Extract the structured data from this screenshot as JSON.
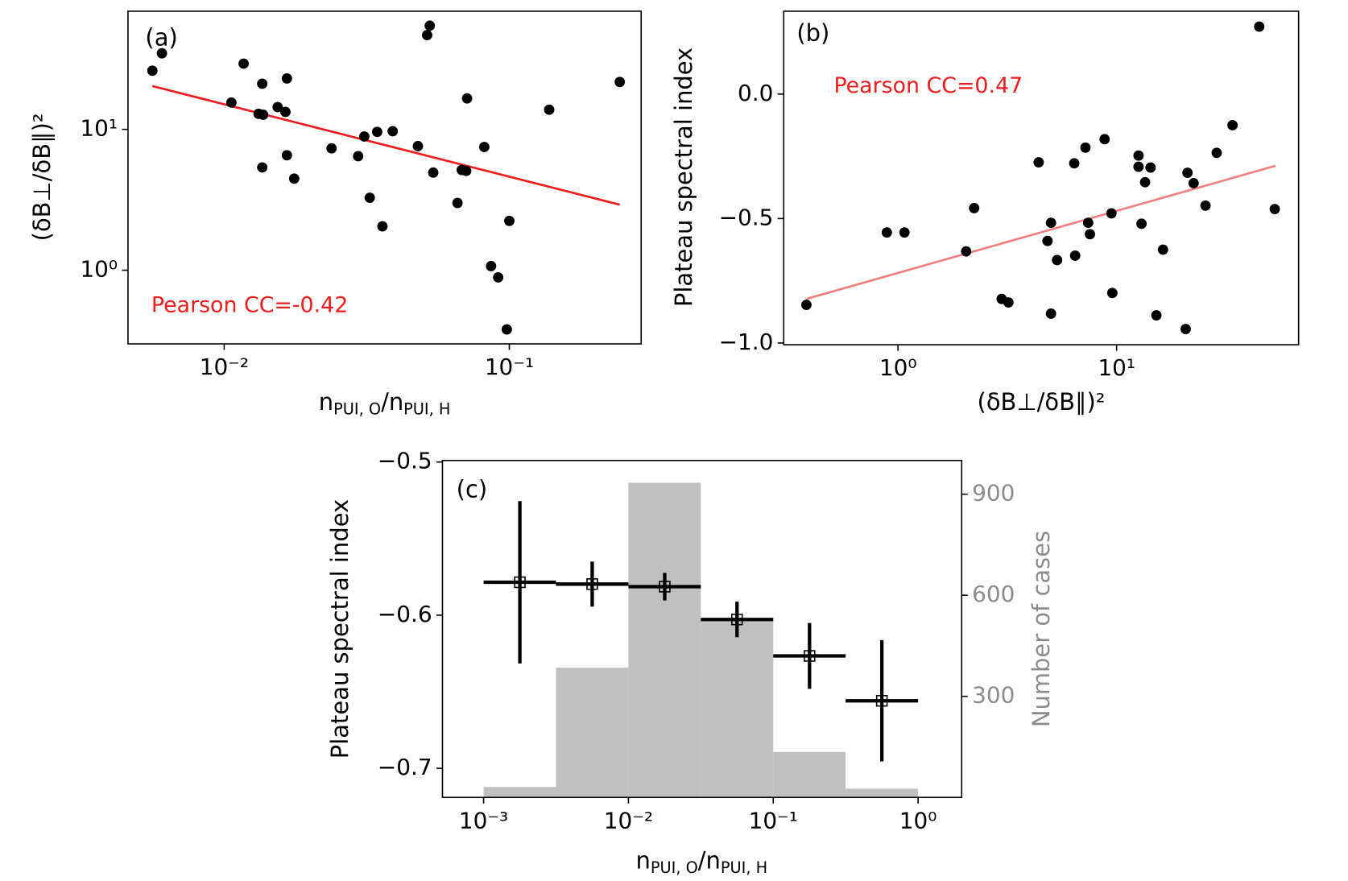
{
  "chart_data": [
    {
      "type": "scatter",
      "panel_label": "(a)",
      "annotation": "Pearson CC=-0.42",
      "annotation_color": "#ee1c1c",
      "xlabel": [
        "n",
        "PUI, O",
        "/n",
        "PUI, H"
      ],
      "ylabel": "(δB⊥/δB∥)²",
      "xscale": "log",
      "yscale": "log",
      "xlim": [
        0.0046,
        0.29
      ],
      "ylim": [
        0.3,
        69
      ],
      "xticks": [
        {
          "value": 0.01,
          "label": "10⁻²"
        },
        {
          "value": 0.1,
          "label": "10⁻¹"
        }
      ],
      "yticks": [
        {
          "value": 1,
          "label": "10⁰"
        },
        {
          "value": 10,
          "label": "10¹"
        }
      ],
      "color": "#000000",
      "x": [
        0.0056,
        0.00605,
        0.0117,
        0.0106,
        0.0136,
        0.0132,
        0.0137,
        0.0154,
        0.0164,
        0.0166,
        0.0136,
        0.0166,
        0.0176,
        0.0238,
        0.0295,
        0.031,
        0.0344,
        0.039,
        0.0324,
        0.0359,
        0.0478,
        0.0515,
        0.0526,
        0.0541,
        0.0711,
        0.0681,
        0.0706,
        0.0658,
        0.0817,
        0.1,
        0.0863,
        0.0914,
        0.098,
        0.138,
        0.244
      ],
      "values": [
        26.1,
        34.7,
        29.3,
        15.5,
        21.1,
        12.9,
        12.7,
        14.4,
        13.3,
        23.0,
        5.37,
        6.55,
        4.47,
        7.33,
        6.45,
        8.9,
        9.6,
        9.7,
        3.27,
        2.05,
        7.6,
        46.7,
        54.5,
        4.93,
        16.6,
        5.15,
        5.07,
        3.0,
        7.5,
        2.24,
        1.07,
        0.89,
        0.38,
        13.8,
        21.7
      ],
      "fit": {
        "x": [
          0.0056,
          0.244
        ],
        "y": [
          20.3,
          2.92
        ],
        "color": "#ee1c1c"
      }
    },
    {
      "type": "scatter",
      "panel_label": "(b)",
      "annotation": "Pearson CC=0.47",
      "annotation_color": "#ee1c1c",
      "xlabel": [
        "(δB⊥/δB∥)²"
      ],
      "ylabel": "Plateau spectral index",
      "xscale": "log",
      "yscale": "linear",
      "xlim": [
        0.3,
        68
      ],
      "ylim": [
        -1.007,
        0.333
      ],
      "xticks": [
        {
          "value": 1,
          "label": "10⁰"
        },
        {
          "value": 10,
          "label": "10¹"
        }
      ],
      "yticks": [
        {
          "value": -1.0,
          "label": "−1.0"
        },
        {
          "value": -0.5,
          "label": "−0.5"
        },
        {
          "value": 0.0,
          "label": "0.0"
        }
      ],
      "color": "#000000",
      "x": [
        0.381,
        0.889,
        1.07,
        2.05,
        2.23,
        2.98,
        3.2,
        4.4,
        4.83,
        5.01,
        5.01,
        5.34,
        6.4,
        6.46,
        7.2,
        7.41,
        7.55,
        8.81,
        9.47,
        9.56,
        12.6,
        12.6,
        13.0,
        13.5,
        14.3,
        15.2,
        16.3,
        20.7,
        21.1,
        22.5,
        25.5,
        28.7,
        33.9,
        44.9,
        52.9
      ],
      "values": [
        -0.847,
        -0.556,
        -0.556,
        -0.632,
        -0.458,
        -0.823,
        -0.837,
        -0.274,
        -0.59,
        -0.517,
        -0.882,
        -0.667,
        -0.278,
        -0.649,
        -0.215,
        -0.517,
        -0.563,
        -0.181,
        -0.479,
        -0.799,
        -0.247,
        -0.292,
        -0.521,
        -0.354,
        -0.295,
        -0.889,
        -0.625,
        -0.944,
        -0.316,
        -0.358,
        -0.448,
        -0.236,
        -0.125,
        0.271,
        -0.462
      ],
      "fit": {
        "x": [
          0.381,
          53.3
        ],
        "y": [
          -0.823,
          -0.288
        ],
        "color": "#f08080"
      }
    },
    {
      "type": "errorbar",
      "panel_label": "(c)",
      "xlabel": [
        "n",
        "PUI, O",
        "/n",
        "PUI, H"
      ],
      "ylabel": "Plateau spectral index",
      "y2label": "Number of cases",
      "y2color": "#8c8c8c",
      "xscale": "log",
      "yscale": "linear",
      "xlim": [
        0.00052,
        2.0
      ],
      "ylim": [
        -0.719,
        -0.499
      ],
      "y2lim": [
        0,
        1000
      ],
      "xticks": [
        {
          "value": 0.001,
          "label": "10⁻³"
        },
        {
          "value": 0.01,
          "label": "10⁻²"
        },
        {
          "value": 0.1,
          "label": "10⁻¹"
        },
        {
          "value": 1,
          "label": "10⁰"
        }
      ],
      "yticks": [
        {
          "value": -0.7,
          "label": "−0.7"
        },
        {
          "value": -0.6,
          "label": "−0.6"
        },
        {
          "value": -0.5,
          "label": "−0.5"
        }
      ],
      "y2ticks": [
        300,
        600,
        900
      ],
      "histogram": {
        "bins": [
          0.001,
          0.00316,
          0.01,
          0.0316,
          0.1,
          0.316,
          1
        ],
        "counts": [
          31,
          385,
          934,
          530,
          135,
          26
        ],
        "color": "#c0c0c0",
        "axis": "y2"
      },
      "series": [
        {
          "color": "#000000",
          "x": [
            0.00178,
            0.00562,
            0.0178,
            0.0562,
            0.178,
            0.562
          ],
          "values": [
            -0.5785,
            -0.5797,
            -0.5814,
            -0.6028,
            -0.6266,
            -0.6559
          ],
          "errors": [
            0.053,
            0.0147,
            0.009,
            0.0116,
            0.0215,
            0.0396
          ]
        }
      ]
    }
  ]
}
